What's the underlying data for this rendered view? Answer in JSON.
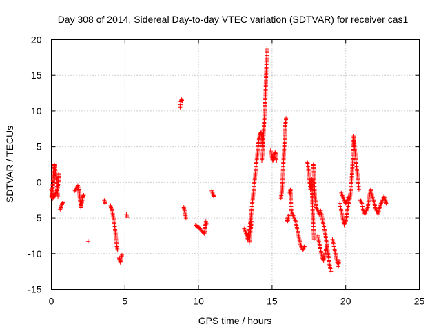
{
  "chart_data": {
    "type": "scatter",
    "title": "Day 308 of 2014, Sidereal Day-to-day VTEC variation (SDTVAR) for receiver cas1",
    "xlabel": "GPS time / hours",
    "ylabel": "SDTVAR / TECUs",
    "xlim": [
      0,
      25
    ],
    "ylim": [
      -15,
      20
    ],
    "xticks": [
      0,
      5,
      10,
      15,
      20,
      25
    ],
    "yticks": [
      -15,
      -10,
      -5,
      0,
      5,
      10,
      15,
      20
    ],
    "xtick_labels": [
      "0",
      "5",
      "10",
      "15",
      "20",
      "25"
    ],
    "ytick_labels": [
      "-15",
      "-10",
      "-5",
      "0",
      "5",
      "10",
      "15",
      "20"
    ],
    "grid": true,
    "marker": "+",
    "series": [
      {
        "name": "cas1",
        "color": "#ff0000",
        "segments": [
          [
            [
              0.0,
              -2.0
            ],
            [
              0.05,
              -1.5
            ],
            [
              0.1,
              -0.5
            ],
            [
              0.12,
              0.5
            ],
            [
              0.15,
              1.5
            ],
            [
              0.2,
              2.5
            ],
            [
              0.25,
              2.0
            ],
            [
              0.3,
              1.0
            ],
            [
              0.35,
              0.0
            ],
            [
              0.4,
              -1.0
            ],
            [
              0.45,
              -0.5
            ],
            [
              0.5,
              0.5
            ],
            [
              0.5,
              1.2
            ]
          ],
          [
            [
              0.0,
              -1.0
            ],
            [
              0.08,
              -2.3
            ],
            [
              0.2,
              -2.0
            ],
            [
              0.3,
              -1.5
            ],
            [
              0.4,
              -1.0
            ],
            [
              0.45,
              -2.0
            ]
          ],
          [
            [
              0.6,
              -3.8
            ],
            [
              0.65,
              -3.5
            ],
            [
              0.7,
              -3.2
            ],
            [
              0.75,
              -3.0
            ],
            [
              0.8,
              -2.8
            ]
          ],
          [
            [
              1.6,
              -1.2
            ],
            [
              1.7,
              -0.8
            ],
            [
              1.8,
              -0.5
            ],
            [
              1.85,
              -0.8
            ],
            [
              1.9,
              -1.5
            ],
            [
              1.95,
              -2.5
            ],
            [
              2.0,
              -3.5
            ],
            [
              2.05,
              -3.0
            ],
            [
              2.1,
              -2.5
            ],
            [
              2.15,
              -2.0
            ],
            [
              2.2,
              -1.8
            ]
          ],
          [
            [
              2.5,
              -8.3
            ]
          ],
          [
            [
              3.6,
              -2.5
            ],
            [
              3.65,
              -3.0
            ]
          ],
          [
            [
              4.0,
              -3.2
            ],
            [
              4.05,
              -3.5
            ],
            [
              4.1,
              -3.8
            ],
            [
              4.15,
              -4.2
            ],
            [
              4.2,
              -4.8
            ],
            [
              4.25,
              -5.2
            ],
            [
              4.3,
              -6.0
            ],
            [
              4.35,
              -7.0
            ],
            [
              4.4,
              -8.0
            ],
            [
              4.45,
              -9.0
            ],
            [
              4.5,
              -9.5
            ]
          ],
          [
            [
              4.6,
              -10.5
            ],
            [
              4.65,
              -11.0
            ],
            [
              4.7,
              -11.3
            ],
            [
              4.75,
              -10.5
            ],
            [
              4.8,
              -10.2
            ]
          ],
          [
            [
              5.1,
              -4.5
            ],
            [
              5.15,
              -4.9
            ]
          ],
          [
            [
              8.75,
              10.5
            ],
            [
              8.8,
              11.3
            ],
            [
              8.85,
              11.6
            ],
            [
              8.9,
              11.4
            ]
          ],
          [
            [
              9.0,
              -3.5
            ],
            [
              9.05,
              -4.0
            ],
            [
              9.1,
              -4.5
            ],
            [
              9.15,
              -5.0
            ]
          ],
          [
            [
              9.8,
              -6.0
            ],
            [
              9.9,
              -6.2
            ],
            [
              10.0,
              -6.3
            ],
            [
              10.1,
              -6.5
            ],
            [
              10.2,
              -6.8
            ],
            [
              10.3,
              -7.0
            ],
            [
              10.4,
              -7.2
            ],
            [
              10.45,
              -6.5
            ],
            [
              10.5,
              -5.5
            ],
            [
              10.55,
              -6.0
            ]
          ],
          [
            [
              10.9,
              -1.2
            ],
            [
              10.95,
              -1.5
            ],
            [
              11.0,
              -1.8
            ],
            [
              11.05,
              -2.0
            ]
          ],
          [
            [
              13.1,
              -6.5
            ],
            [
              13.2,
              -7.0
            ],
            [
              13.3,
              -7.5
            ],
            [
              13.35,
              -8.0
            ],
            [
              13.4,
              -7.0
            ],
            [
              13.5,
              -6.0
            ],
            [
              13.55,
              -5.0
            ],
            [
              13.6,
              -4.0
            ],
            [
              13.65,
              -3.0
            ],
            [
              13.7,
              -2.0
            ],
            [
              13.75,
              -1.0
            ],
            [
              13.8,
              0.0
            ],
            [
              13.85,
              1.0
            ],
            [
              13.9,
              2.0
            ],
            [
              13.95,
              3.0
            ],
            [
              14.0,
              4.0
            ],
            [
              14.05,
              5.0
            ],
            [
              14.1,
              6.0
            ],
            [
              14.15,
              6.5
            ],
            [
              14.2,
              6.8
            ],
            [
              14.25,
              7.0
            ],
            [
              14.3,
              6.5
            ],
            [
              14.35,
              5.0
            ],
            [
              14.4,
              6.0
            ],
            [
              14.45,
              8.0
            ],
            [
              14.5,
              10.0
            ],
            [
              14.55,
              12.0
            ],
            [
              14.6,
              15.5
            ],
            [
              14.65,
              18.8
            ]
          ],
          [
            [
              13.45,
              -8.5
            ],
            [
              13.5,
              -7.5
            ],
            [
              13.55,
              -6.5
            ],
            [
              13.6,
              -5.5
            ]
          ],
          [
            [
              14.3,
              3.0
            ],
            [
              14.35,
              4.0
            ],
            [
              14.4,
              5.0
            ]
          ],
          [
            [
              14.9,
              4.5
            ],
            [
              15.0,
              3.5
            ],
            [
              15.05,
              3.0
            ],
            [
              15.1,
              3.3
            ],
            [
              15.15,
              3.8
            ],
            [
              15.2,
              4.2
            ],
            [
              15.25,
              4.0
            ],
            [
              15.3,
              3.0
            ]
          ],
          [
            [
              15.6,
              -2.2
            ],
            [
              15.65,
              -1.5
            ],
            [
              15.7,
              0.0
            ],
            [
              15.75,
              2.0
            ],
            [
              15.8,
              4.0
            ],
            [
              15.85,
              6.0
            ],
            [
              15.9,
              8.0
            ],
            [
              15.95,
              9.0
            ]
          ],
          [
            [
              16.0,
              -5.0
            ],
            [
              16.05,
              -5.5
            ],
            [
              16.1,
              -5.0
            ],
            [
              16.15,
              -4.5
            ]
          ],
          [
            [
              16.2,
              -1.5
            ],
            [
              16.25,
              -1.0
            ],
            [
              16.3,
              -4.0
            ],
            [
              16.4,
              -4.5
            ],
            [
              16.5,
              -5.0
            ],
            [
              16.6,
              -5.5
            ],
            [
              16.7,
              -6.5
            ],
            [
              16.8,
              -7.5
            ],
            [
              16.9,
              -8.5
            ],
            [
              17.0,
              -9.2
            ],
            [
              17.1,
              -9.5
            ],
            [
              17.2,
              -9.0
            ]
          ],
          [
            [
              17.4,
              2.8
            ],
            [
              17.45,
              2.0
            ],
            [
              17.5,
              1.0
            ],
            [
              17.55,
              0.0
            ],
            [
              17.6,
              -1.0
            ],
            [
              17.65,
              -0.5
            ],
            [
              17.7,
              0.5
            ],
            [
              17.75,
              -4.0
            ],
            [
              17.8,
              -6.0
            ],
            [
              17.85,
              -8.0
            ]
          ],
          [
            [
              17.8,
              2.5
            ],
            [
              17.85,
              1.0
            ],
            [
              17.9,
              -2.0
            ],
            [
              18.0,
              -3.5
            ],
            [
              18.1,
              -4.0
            ],
            [
              18.2,
              -4.5
            ],
            [
              18.3,
              -4.0
            ],
            [
              18.4,
              -5.0
            ],
            [
              18.5,
              -6.0
            ],
            [
              18.6,
              -7.0
            ],
            [
              18.7,
              -8.5
            ],
            [
              18.8,
              -10.0
            ],
            [
              18.9,
              -11.5
            ],
            [
              19.0,
              -12.5
            ]
          ],
          [
            [
              18.1,
              -7.5
            ],
            [
              18.2,
              -8.5
            ],
            [
              18.3,
              -9.5
            ],
            [
              18.4,
              -10.5
            ],
            [
              18.5,
              -11.0
            ],
            [
              18.6,
              -10.0
            ],
            [
              18.7,
              -9.0
            ]
          ],
          [
            [
              19.1,
              -8.0
            ],
            [
              19.2,
              -9.0
            ],
            [
              19.3,
              -10.0
            ],
            [
              19.4,
              -11.0
            ],
            [
              19.5,
              -11.8
            ],
            [
              19.55,
              -11.0
            ]
          ],
          [
            [
              19.6,
              -3.0
            ],
            [
              19.7,
              -4.0
            ],
            [
              19.8,
              -5.0
            ],
            [
              19.9,
              -6.0
            ],
            [
              20.0,
              -5.5
            ],
            [
              20.1,
              -4.0
            ],
            [
              20.2,
              -3.0
            ],
            [
              20.3,
              -2.0
            ],
            [
              20.4,
              0.0
            ],
            [
              20.5,
              4.0
            ],
            [
              20.55,
              6.5
            ],
            [
              20.6,
              5.0
            ],
            [
              20.7,
              3.0
            ],
            [
              20.8,
              1.0
            ],
            [
              20.9,
              -1.0
            ]
          ],
          [
            [
              19.7,
              -1.5
            ],
            [
              19.8,
              -2.0
            ],
            [
              19.9,
              -2.5
            ],
            [
              20.0,
              -3.0
            ],
            [
              20.1,
              -2.5
            ],
            [
              20.2,
              -2.0
            ]
          ],
          [
            [
              21.0,
              -2.5
            ],
            [
              21.1,
              -3.0
            ],
            [
              21.2,
              -4.0
            ],
            [
              21.3,
              -4.5
            ],
            [
              21.4,
              -4.0
            ],
            [
              21.5,
              -3.5
            ],
            [
              21.6,
              -2.0
            ],
            [
              21.7,
              -1.0
            ],
            [
              21.8,
              -2.0
            ],
            [
              21.9,
              -2.5
            ],
            [
              22.0,
              -3.5
            ],
            [
              22.1,
              -4.0
            ],
            [
              22.2,
              -4.5
            ],
            [
              22.3,
              -3.5
            ],
            [
              22.4,
              -3.0
            ],
            [
              22.5,
              -2.5
            ],
            [
              22.6,
              -2.0
            ],
            [
              22.7,
              -2.5
            ],
            [
              22.75,
              -3.0
            ]
          ]
        ]
      }
    ]
  }
}
